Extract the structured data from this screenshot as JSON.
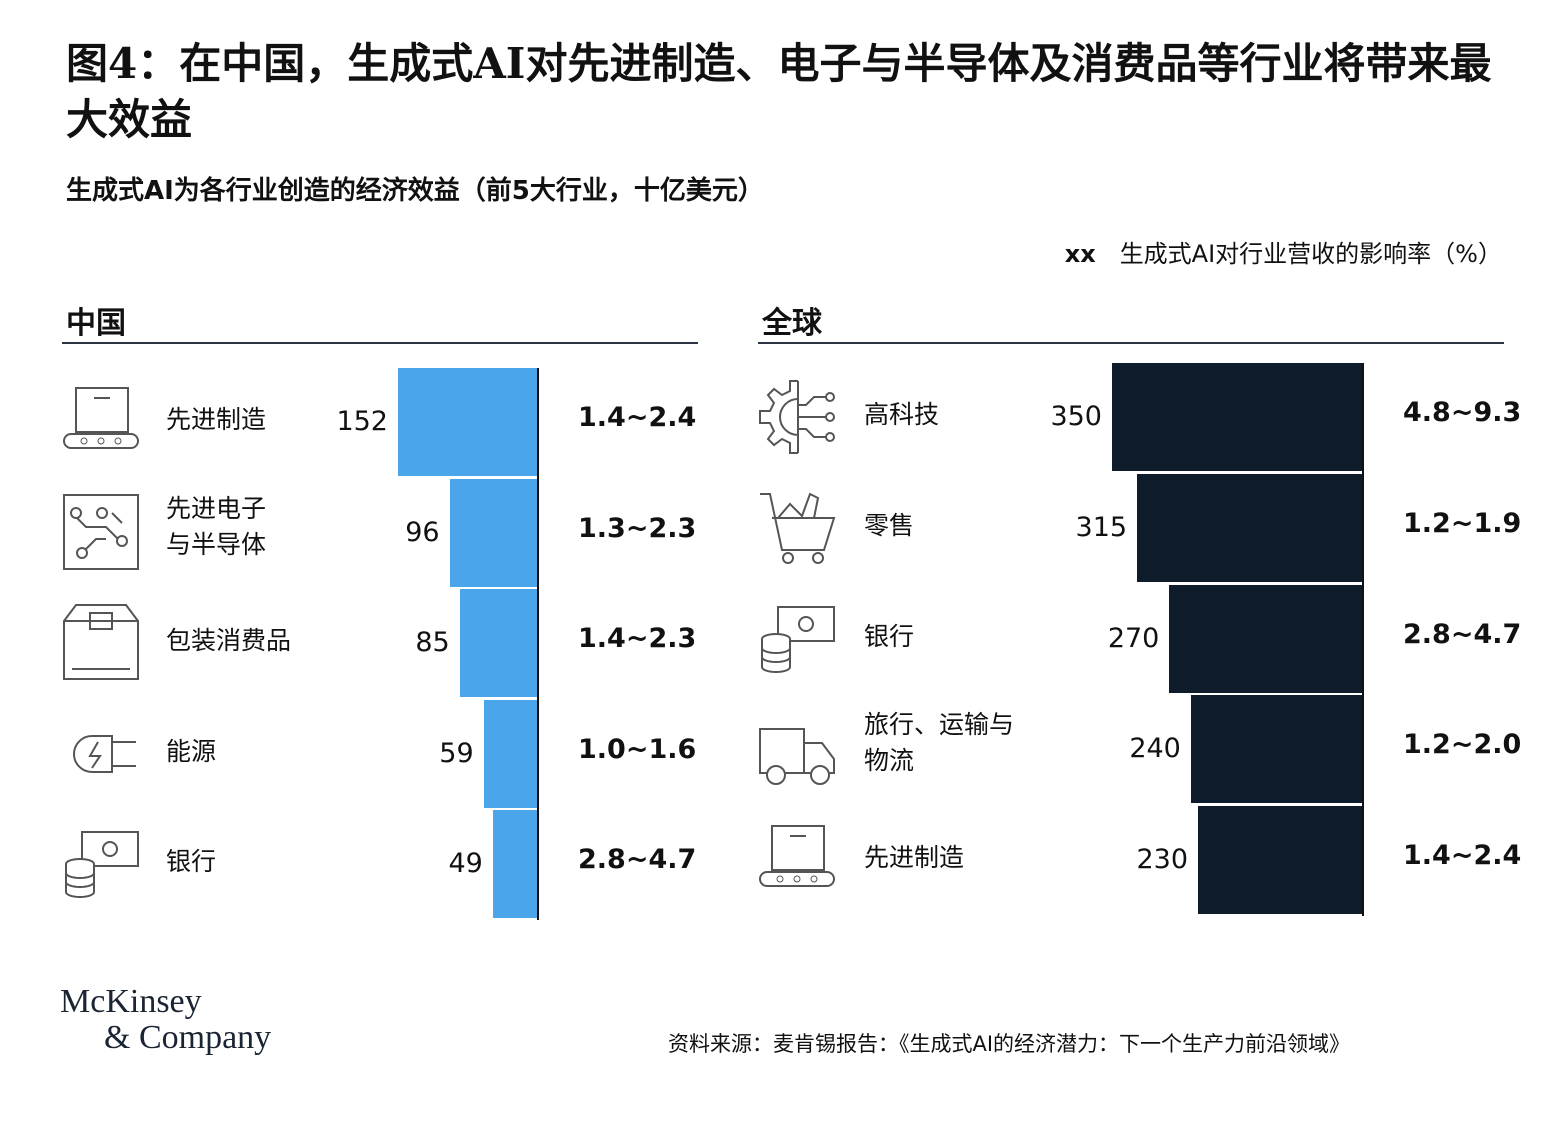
{
  "title": "图4：在中国，生成式AI对先进制造、电子与半导体及消费品等行业将带来最大效益",
  "subtitle": "生成式AI为各行业创造的经济效益（前5大行业，十亿美元）",
  "legend": {
    "marker": "xx",
    "text": "生成式AI对行业营收的影响率（%）"
  },
  "colors": {
    "china": "#4aa5ea",
    "global": "#0e1b2a"
  },
  "chart_data": [
    {
      "type": "bar",
      "orientation": "horizontal",
      "title": "中国",
      "unit": "十亿美元",
      "categories": [
        "先进制造",
        "先进电子\n与半导体",
        "包装消费品",
        "能源",
        "银行"
      ],
      "icons": [
        "conveyor-icon",
        "circuit-icon",
        "box-icon",
        "plug-icon",
        "coins-cash-icon"
      ],
      "values": [
        152,
        96,
        85,
        59,
        49
      ],
      "rates": [
        "1.4~2.4",
        "1.3~2.3",
        "1.4~2.3",
        "1.0~1.6",
        "2.8~4.7"
      ]
    },
    {
      "type": "bar",
      "orientation": "horizontal",
      "title": "全球",
      "unit": "十亿美元",
      "categories": [
        "高科技",
        "零售",
        "银行",
        "旅行、运输与\n物流",
        "先进制造"
      ],
      "icons": [
        "gear-circuit-icon",
        "cart-icon",
        "coins-cash-icon",
        "truck-icon",
        "conveyor-icon"
      ],
      "values": [
        350,
        315,
        270,
        240,
        230
      ],
      "rates": [
        "4.8~9.3",
        "1.2~1.9",
        "2.8~4.7",
        "1.2~2.0",
        "1.4~2.4"
      ]
    }
  ],
  "logo": "McKinsey & Company",
  "source": "资料来源：麦肯锡报告：《生成式AI的经济潜力：下一个生产力前沿领域》"
}
